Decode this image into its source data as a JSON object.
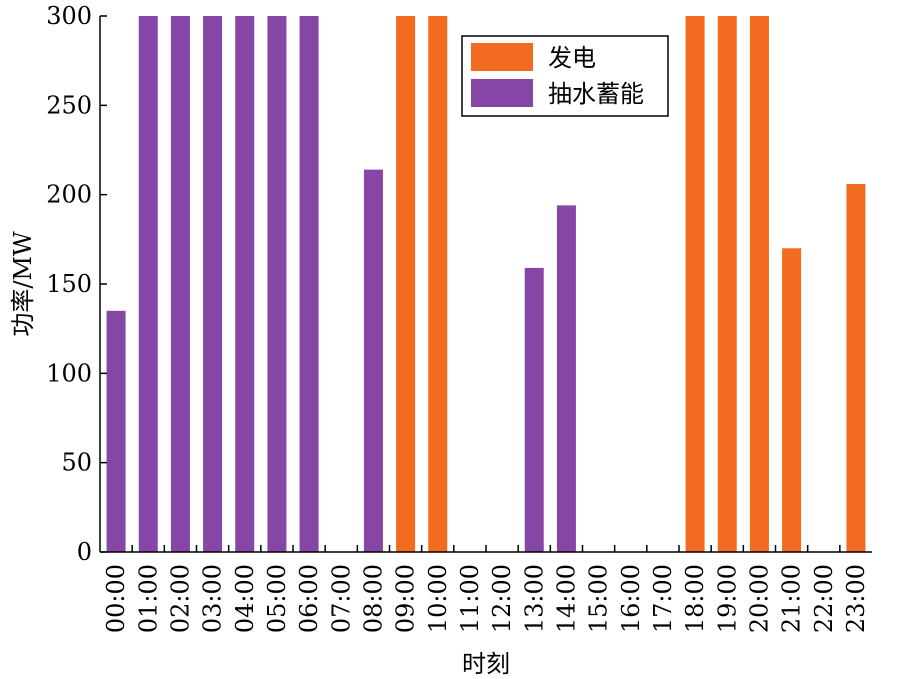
{
  "chart_data": {
    "type": "bar",
    "xlabel": "时刻",
    "ylabel": "功率/MW",
    "ylim": [
      0,
      300
    ],
    "yticks": [
      0,
      50,
      100,
      150,
      200,
      250,
      300
    ],
    "grid": false,
    "legend_position": "top-right",
    "categories": [
      "00:00",
      "01:00",
      "02:00",
      "03:00",
      "04:00",
      "05:00",
      "06:00",
      "07:00",
      "08:00",
      "09:00",
      "10:00",
      "11:00",
      "12:00",
      "13:00",
      "14:00",
      "15:00",
      "16:00",
      "17:00",
      "18:00",
      "19:00",
      "20:00",
      "21:00",
      "22:00",
      "23:00"
    ],
    "series": [
      {
        "name": "发电",
        "color": "#f26b21",
        "values": [
          0,
          0,
          0,
          0,
          0,
          0,
          0,
          0,
          0,
          300,
          300,
          0,
          0,
          0,
          0,
          0,
          0,
          0,
          300,
          300,
          300,
          170,
          0,
          206
        ]
      },
      {
        "name": "抽水蓄能",
        "color": "#8646a6",
        "values": [
          135,
          300,
          300,
          300,
          300,
          300,
          300,
          0,
          214,
          0,
          0,
          0,
          0,
          159,
          194,
          0,
          0,
          0,
          0,
          0,
          0,
          0,
          0,
          0
        ]
      }
    ]
  }
}
